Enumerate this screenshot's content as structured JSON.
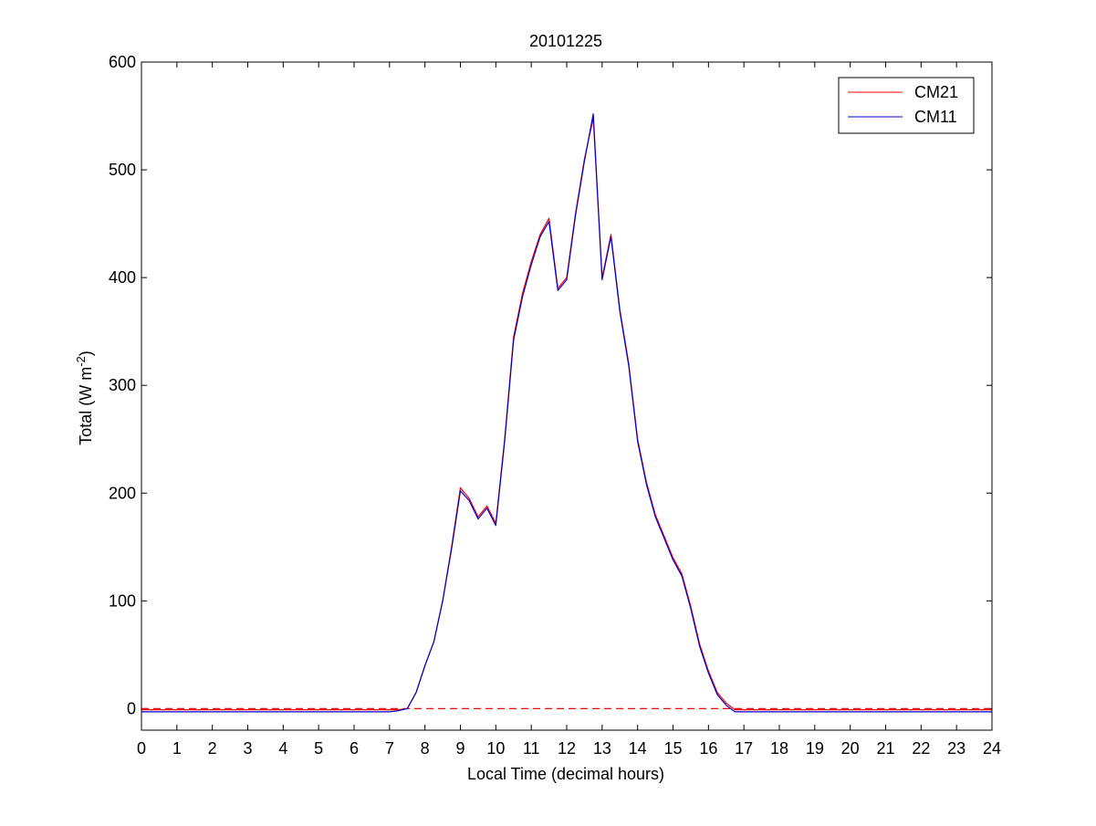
{
  "chart_data": {
    "type": "line",
    "title": "20101225",
    "xlabel": "Local Time (decimal hours)",
    "ylabel": {
      "main": "Total (W m",
      "sup": "-2",
      "close": ")"
    },
    "xlim": [
      0,
      24
    ],
    "ylim": [
      -20,
      600
    ],
    "xticks": [
      0,
      1,
      2,
      3,
      4,
      5,
      6,
      7,
      8,
      9,
      10,
      11,
      12,
      13,
      14,
      15,
      16,
      17,
      18,
      19,
      20,
      21,
      22,
      23,
      24
    ],
    "yticks": [
      0,
      100,
      200,
      300,
      400,
      500,
      600
    ],
    "legend_position": "top-right",
    "reference_line": {
      "y": 0,
      "style": "dashed",
      "color": "#ff0000"
    },
    "x": [
      0,
      1,
      2,
      3,
      4,
      5,
      6,
      7,
      7.25,
      7.5,
      7.75,
      8,
      8.25,
      8.5,
      8.75,
      9,
      9.25,
      9.5,
      9.75,
      10,
      10.25,
      10.5,
      10.75,
      11,
      11.25,
      11.5,
      11.75,
      12,
      12.25,
      12.5,
      12.75,
      13,
      13.25,
      13.5,
      13.75,
      14,
      14.25,
      14.5,
      14.75,
      15,
      15.25,
      15.5,
      15.75,
      16,
      16.25,
      16.5,
      16.75,
      17,
      17.25,
      18,
      19,
      20,
      21,
      22,
      23,
      24
    ],
    "series": [
      {
        "name": "CM21",
        "color": "#ff0000",
        "values": [
          -1,
          -1,
          -1,
          -1,
          -1,
          -1,
          -1,
          -1,
          -1,
          0,
          15,
          40,
          62,
          100,
          150,
          205,
          195,
          178,
          188,
          172,
          250,
          345,
          385,
          415,
          440,
          455,
          390,
          400,
          460,
          510,
          548,
          400,
          440,
          370,
          320,
          250,
          210,
          180,
          160,
          140,
          125,
          95,
          60,
          35,
          15,
          5,
          -1,
          -1,
          -1,
          -1,
          -1,
          -1,
          -1,
          -1,
          -1,
          -1
        ]
      },
      {
        "name": "CM11",
        "color": "#0000cc",
        "values": [
          -3,
          -3,
          -3,
          -3,
          -3,
          -3,
          -3,
          -3,
          -2,
          0,
          15,
          40,
          62,
          100,
          148,
          202,
          193,
          176,
          186,
          170,
          248,
          342,
          382,
          412,
          438,
          452,
          388,
          398,
          458,
          508,
          552,
          398,
          438,
          368,
          318,
          248,
          208,
          178,
          158,
          138,
          123,
          93,
          58,
          33,
          13,
          3,
          -3,
          -3,
          -3,
          -3,
          -3,
          -3,
          -3,
          -3,
          -3,
          -3
        ]
      }
    ]
  }
}
